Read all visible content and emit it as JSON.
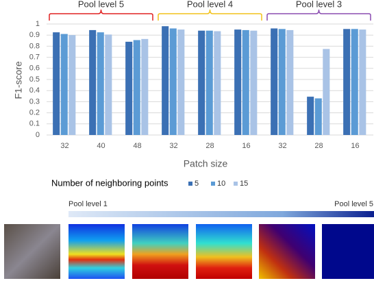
{
  "chart_data": {
    "type": "bar",
    "x_label": "Patch size",
    "y_label": "F1-score",
    "categories": [
      "32",
      "40",
      "48",
      "32",
      "28",
      "16",
      "32",
      "28",
      "16"
    ],
    "series": [
      {
        "name": "5",
        "color": "#3b70b4",
        "values": [
          0.925,
          0.945,
          0.84,
          0.98,
          0.94,
          0.95,
          0.96,
          0.345,
          0.955
        ]
      },
      {
        "name": "10",
        "color": "#5b9bd5",
        "values": [
          0.91,
          0.925,
          0.855,
          0.96,
          0.94,
          0.945,
          0.955,
          0.33,
          0.955
        ]
      },
      {
        "name": "15",
        "color": "#a9c3e6",
        "values": [
          0.9,
          0.905,
          0.865,
          0.95,
          0.935,
          0.94,
          0.945,
          0.775,
          0.95
        ]
      }
    ],
    "legend_title": "Number of neighboring points",
    "groups": [
      {
        "label": "Pool level 5",
        "color": "#e02020"
      },
      {
        "label": "Pool level 4",
        "color": "#f2c21a"
      },
      {
        "label": "Pool level 3",
        "color": "#8a4cb0"
      }
    ],
    "ylim": [
      0,
      1
    ],
    "yticks": [
      0,
      0.1,
      0.2,
      0.3,
      0.4,
      0.5,
      0.6,
      0.7,
      0.8,
      0.9,
      1
    ],
    "grid": true
  },
  "heatmap_strip": {
    "start_label": "Pool level 1",
    "end_label": "Pool level 5"
  }
}
